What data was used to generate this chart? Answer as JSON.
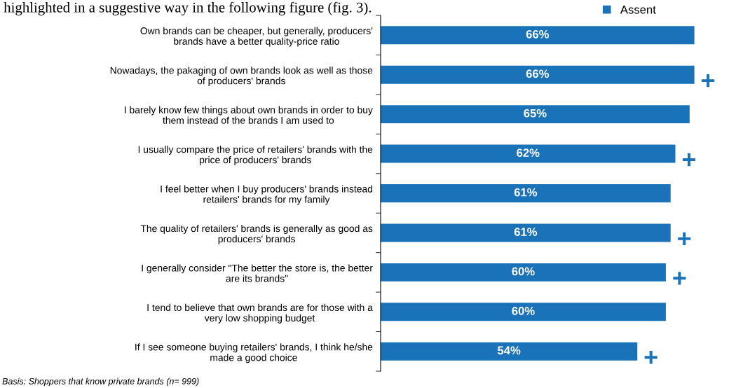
{
  "chart_data": {
    "type": "bar",
    "orientation": "horizontal",
    "categories": [
      "Own brands can be cheaper, but generally, producers' brands have a better quality-price ratio",
      "Nowadays, the pakaging of own brands look as well as those of producers' brands",
      "I barely know few things about own brands in order to buy them instead of the brands I am used to",
      "I usually compare the price of retailers' brands with the price of producers' brands",
      "I feel better when I buy producers' brands instead retailers' brands for my family",
      "The quality of retailers' brands is generally as good as producers' brands",
      "I generally consider \"The better the store is, the better are its brands\"",
      "I tend to believe that own brands are for those with a very low shopping budget",
      "If I see someone buying retailers' brands, I think he/she made a good choice"
    ],
    "series": [
      {
        "name": "Assent",
        "color": "#1a73b8",
        "values": [
          66,
          66,
          65,
          62,
          61,
          61,
          60,
          60,
          54
        ],
        "value_labels": [
          "66%",
          "66%",
          "65%",
          "62%",
          "61%",
          "61%",
          "60%",
          "60%",
          "54%"
        ]
      }
    ],
    "tick_labels": "y",
    "legend": "top right",
    "grid": false,
    "annotations": [
      "highlighted in a suggestive way in the following figure (fig. 3).",
      "Basis: Shoppers that know private brands (n= 999)",
      {
        "text": "+",
        "x": 66,
        "y": "Nowadays, the pakaging of own brands look as well as those of producers' brands"
      },
      {
        "text": "+",
        "x": 62,
        "y": "I usually compare the price of retailers' brands with the price of producers' brands"
      },
      {
        "text": "+",
        "x": 61,
        "y": "The quality of retailers' brands is generally as good as producers' brands"
      },
      {
        "text": "+",
        "x": 60,
        "y": "I generally consider \"The better the store is, the better are its brands\""
      },
      {
        "text": "+",
        "x": 54,
        "y": "If I see someone buying retailers' brands, I think he/she made a good choice"
      }
    ]
  }
}
